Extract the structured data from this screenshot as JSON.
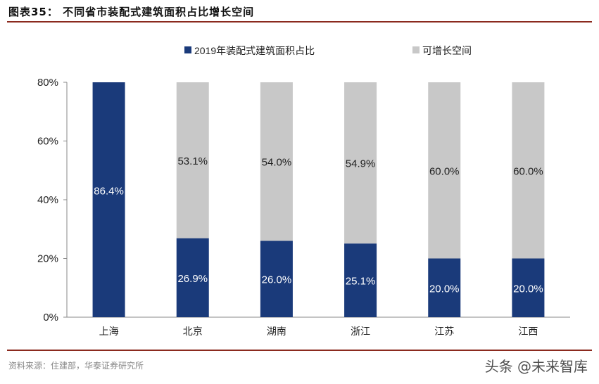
{
  "header": {
    "title": "图表35：  不同省市装配式建筑面积占比增长空间"
  },
  "footer": {
    "source": "资料来源：住建部，华泰证券研究所",
    "watermark": "头条 @未来智库"
  },
  "chart_data": {
    "type": "bar",
    "stacked": true,
    "categories": [
      "上海",
      "北京",
      "湖南",
      "浙江",
      "江苏",
      "江西"
    ],
    "series": [
      {
        "name": "2019年装配式建筑面积占比",
        "color": "#1a3a7a",
        "values": [
          86.4,
          26.9,
          26.0,
          25.1,
          20.0,
          20.0
        ],
        "labels": [
          "86.4%",
          "26.9%",
          "26.0%",
          "25.1%",
          "20.0%",
          "20.0%"
        ]
      },
      {
        "name": "可增长空间",
        "color": "#c8c8c8",
        "values": [
          0,
          53.1,
          54.0,
          54.9,
          60.0,
          60.0
        ],
        "labels": [
          "",
          "53.1%",
          "54.0%",
          "54.9%",
          "60.0%",
          "60.0%"
        ]
      }
    ],
    "yticks": [
      "0%",
      "20%",
      "40%",
      "60%",
      "80%"
    ],
    "ylim": [
      0,
      80
    ],
    "legend": "top",
    "grid": false
  }
}
